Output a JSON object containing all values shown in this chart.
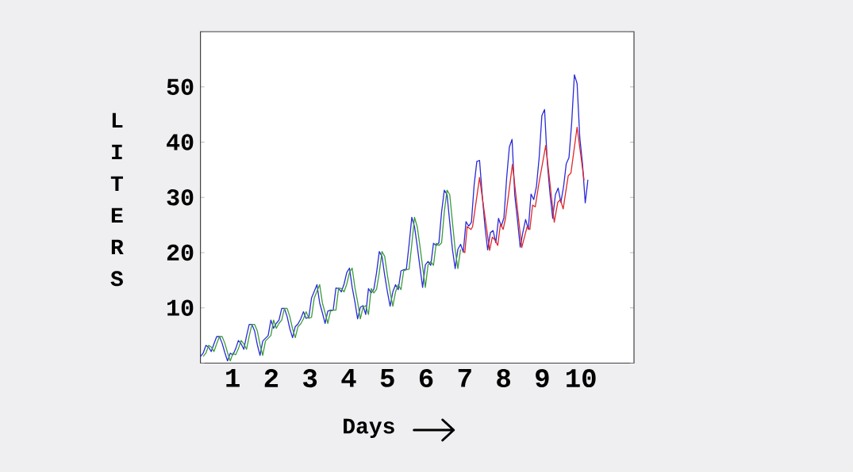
{
  "chart_data": {
    "type": "line",
    "xlabel": "Days",
    "ylabel": "LITERS",
    "xlim": [
      0.17,
      11.37
    ],
    "ylim": [
      0,
      60
    ],
    "xticks": [
      1,
      2,
      3,
      4,
      5,
      6,
      7,
      8,
      9,
      10
    ],
    "yticks": [
      {
        "value": 0,
        "label": null
      },
      10,
      20,
      30,
      40,
      50,
      {
        "value": 60,
        "label": null
      }
    ],
    "series": [
      {
        "color": "#2a2ad8",
        "x": [
          0.17,
          0.24,
          0.31,
          0.38,
          0.45,
          0.52,
          0.59,
          0.66,
          0.73,
          0.8,
          0.87,
          0.94,
          1.01,
          1.08,
          1.15,
          1.22,
          1.29,
          1.36,
          1.43,
          1.5,
          1.57,
          1.64,
          1.71,
          1.78,
          1.85,
          1.92,
          1.99,
          2.06,
          2.13,
          2.2,
          2.27,
          2.34,
          2.41,
          2.48,
          2.55,
          2.62,
          2.69,
          2.76,
          2.83,
          2.9,
          2.97,
          3.04,
          3.11,
          3.18,
          3.25,
          3.32,
          3.39,
          3.46,
          3.53,
          3.6,
          3.67,
          3.74,
          3.81,
          3.88,
          3.95,
          4.02,
          4.09,
          4.16,
          4.23,
          4.3,
          4.37,
          4.44,
          4.51,
          4.58,
          4.65,
          4.72,
          4.79,
          4.86,
          4.93,
          5.0,
          5.07,
          5.14,
          5.21,
          5.28,
          5.35,
          5.42,
          5.49,
          5.56,
          5.63,
          5.7,
          5.77,
          5.84,
          5.91,
          5.98,
          6.05,
          6.12,
          6.19,
          6.26,
          6.33,
          6.4,
          6.47,
          6.54,
          6.61,
          6.68,
          6.75,
          6.82,
          6.89,
          6.96,
          7.03,
          7.1,
          7.17,
          7.24,
          7.31,
          7.38,
          7.45,
          7.52,
          7.59,
          7.66,
          7.73,
          7.8,
          7.87,
          7.94,
          8.01,
          8.08,
          8.15,
          8.22,
          8.29,
          8.36,
          8.43,
          8.5,
          8.57,
          8.64,
          8.71,
          8.78,
          8.85,
          8.92,
          8.99,
          9.06,
          9.13,
          9.2,
          9.27,
          9.34,
          9.41,
          9.48,
          9.55,
          9.62,
          9.69,
          9.76,
          9.83,
          9.9,
          9.97,
          10.04,
          10.11,
          10.18
        ],
        "values": [
          1.2,
          1.8,
          3.2,
          2.9,
          2.1,
          3.5,
          4.8,
          4.8,
          3.6,
          1.9,
          0.4,
          1.8,
          1.5,
          2.6,
          4.1,
          3.5,
          2.5,
          4.9,
          7.0,
          7.0,
          5.8,
          3.3,
          1.4,
          4.0,
          4.5,
          5.0,
          7.8,
          6.3,
          7.2,
          7.8,
          9.9,
          9.9,
          8.4,
          6.2,
          4.6,
          6.6,
          7.1,
          8.0,
          9.3,
          8.1,
          8.3,
          11.8,
          13.0,
          14.2,
          10.9,
          9.1,
          7.2,
          9.4,
          9.6,
          9.6,
          13.6,
          13.5,
          12.9,
          14.3,
          16.4,
          17.2,
          13.7,
          11.1,
          8.0,
          10.1,
          10.4,
          8.8,
          13.5,
          12.7,
          13.4,
          16.4,
          20.2,
          19.3,
          15.9,
          12.9,
          10.3,
          12.9,
          14.2,
          13.3,
          16.7,
          16.9,
          17.0,
          21.5,
          26.4,
          24.7,
          21.2,
          17.4,
          13.7,
          17.8,
          18.4,
          17.7,
          21.7,
          21.3,
          21.8,
          27.4,
          31.3,
          30.5,
          25.5,
          20.6,
          17.1,
          20.6,
          21.5,
          20.1,
          25.6,
          24.8,
          25.5,
          32.2,
          36.5,
          36.7,
          30.4,
          24.7,
          20.5,
          23.6,
          24.0,
          21.8,
          26.2,
          24.8,
          26.3,
          33.5,
          39.1,
          40.5,
          30.4,
          25.9,
          21.0,
          23.7,
          26.0,
          24.2,
          30.6,
          29.6,
          32.0,
          37.2,
          44.8,
          45.9,
          36.3,
          30.7,
          26.2,
          30.5,
          31.7,
          29.1,
          31.9,
          36.1,
          37.2,
          43.5,
          52.2,
          50.6,
          40.8,
          36.1,
          29.0,
          33.2
        ]
      },
      {
        "color": "#3c9c3c",
        "x": [
          0.24,
          0.31,
          0.38,
          0.45,
          0.52,
          0.59,
          0.66,
          0.73,
          0.8,
          0.87,
          0.94,
          1.01,
          1.08,
          1.15,
          1.22,
          1.29,
          1.36,
          1.43,
          1.5,
          1.57,
          1.64,
          1.71,
          1.78,
          1.85,
          1.92,
          1.99,
          2.06,
          2.13,
          2.2,
          2.27,
          2.34,
          2.41,
          2.48,
          2.55,
          2.62,
          2.69,
          2.76,
          2.83,
          2.9,
          2.97,
          3.04,
          3.11,
          3.18,
          3.25,
          3.32,
          3.39,
          3.46,
          3.53,
          3.6,
          3.67,
          3.74,
          3.81,
          3.88,
          3.95,
          4.02,
          4.09,
          4.16,
          4.23,
          4.3,
          4.37,
          4.44,
          4.51,
          4.58,
          4.65,
          4.72,
          4.79,
          4.86,
          4.93,
          5.0,
          5.07,
          5.14,
          5.21,
          5.28,
          5.35,
          5.42,
          5.49,
          5.56,
          5.63,
          5.7,
          5.77,
          5.84,
          5.91,
          5.98,
          6.05,
          6.12,
          6.19,
          6.26,
          6.33,
          6.4,
          6.47,
          6.54,
          6.61,
          6.68,
          6.75,
          6.82,
          6.89
        ],
        "values": [
          1.2,
          1.8,
          3.2,
          2.9,
          2.1,
          3.5,
          4.8,
          4.8,
          3.6,
          1.9,
          0.4,
          1.8,
          1.5,
          2.6,
          4.1,
          3.5,
          2.5,
          4.9,
          7.0,
          7.0,
          5.8,
          3.3,
          1.4,
          4.0,
          4.5,
          5.0,
          7.8,
          6.3,
          7.2,
          7.8,
          9.9,
          9.9,
          8.4,
          6.2,
          4.6,
          6.6,
          7.1,
          8.0,
          9.3,
          8.1,
          8.3,
          11.8,
          13.0,
          14.2,
          10.9,
          9.1,
          7.2,
          9.4,
          9.6,
          9.6,
          13.6,
          13.5,
          12.9,
          14.3,
          16.4,
          17.2,
          13.7,
          11.1,
          8.0,
          10.1,
          10.4,
          8.8,
          13.5,
          12.7,
          13.4,
          16.4,
          20.2,
          19.3,
          15.9,
          12.9,
          10.3,
          12.9,
          14.2,
          13.3,
          16.7,
          16.9,
          17.0,
          21.5,
          26.4,
          24.7,
          21.2,
          17.4,
          13.7,
          17.8,
          18.4,
          17.7,
          21.7,
          21.3,
          21.8,
          27.4,
          31.3,
          30.5,
          25.5,
          20.6,
          17.1,
          20.6
        ]
      },
      {
        "color": "#e02828",
        "x": [
          6.94,
          7.0,
          7.06,
          7.16,
          7.2,
          7.38,
          7.64,
          7.71,
          7.78,
          7.85,
          7.92,
          7.99,
          8.05,
          8.23,
          8.47,
          8.61,
          8.68,
          8.75,
          8.82,
          8.91,
          9.09,
          9.31,
          9.4,
          9.47,
          9.54,
          9.67,
          9.74,
          9.9,
          10.08
        ],
        "values": [
          20.3,
          20.0,
          24.7,
          24.2,
          24.7,
          33.6,
          20.4,
          22.8,
          22.3,
          21.3,
          25.2,
          24.2,
          26.2,
          36.0,
          20.9,
          24.7,
          24.2,
          28.6,
          28.3,
          32.4,
          39.4,
          25.5,
          29.1,
          29.6,
          27.9,
          33.9,
          34.4,
          42.7,
          33.1
        ]
      }
    ]
  }
}
